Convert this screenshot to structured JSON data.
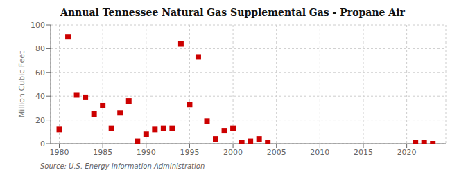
{
  "chart_data": {
    "type": "scatter",
    "title": "Annual Tennessee Natural Gas Supplemental Gas - Propane Air",
    "ylabel": "Million Cubic Feet",
    "annotations": [
      "Source: U.S. Energy Information Administration"
    ],
    "x": [
      1980,
      1981,
      1982,
      1983,
      1984,
      1985,
      1986,
      1987,
      1988,
      1989,
      1990,
      1991,
      1992,
      1993,
      1994,
      1995,
      1996,
      1997,
      1998,
      1999,
      2000,
      2001,
      2002,
      2003,
      2004,
      2021,
      2022,
      2023
    ],
    "values": [
      12,
      90,
      41,
      39,
      25,
      32,
      13,
      26,
      36,
      2,
      8,
      12,
      13,
      13,
      84,
      33,
      73,
      19,
      4,
      11,
      13,
      1,
      2,
      4,
      1,
      1,
      1,
      0
    ],
    "color": "#cc0000",
    "marker": "square",
    "xlim": [
      1979,
      2024.5
    ],
    "ylim": [
      0,
      100
    ],
    "xticks": [
      1980,
      1985,
      1990,
      1995,
      2000,
      2005,
      2010,
      2015,
      2020
    ],
    "yticks": [
      0,
      20,
      40,
      60,
      80,
      100
    ],
    "grid": true
  }
}
